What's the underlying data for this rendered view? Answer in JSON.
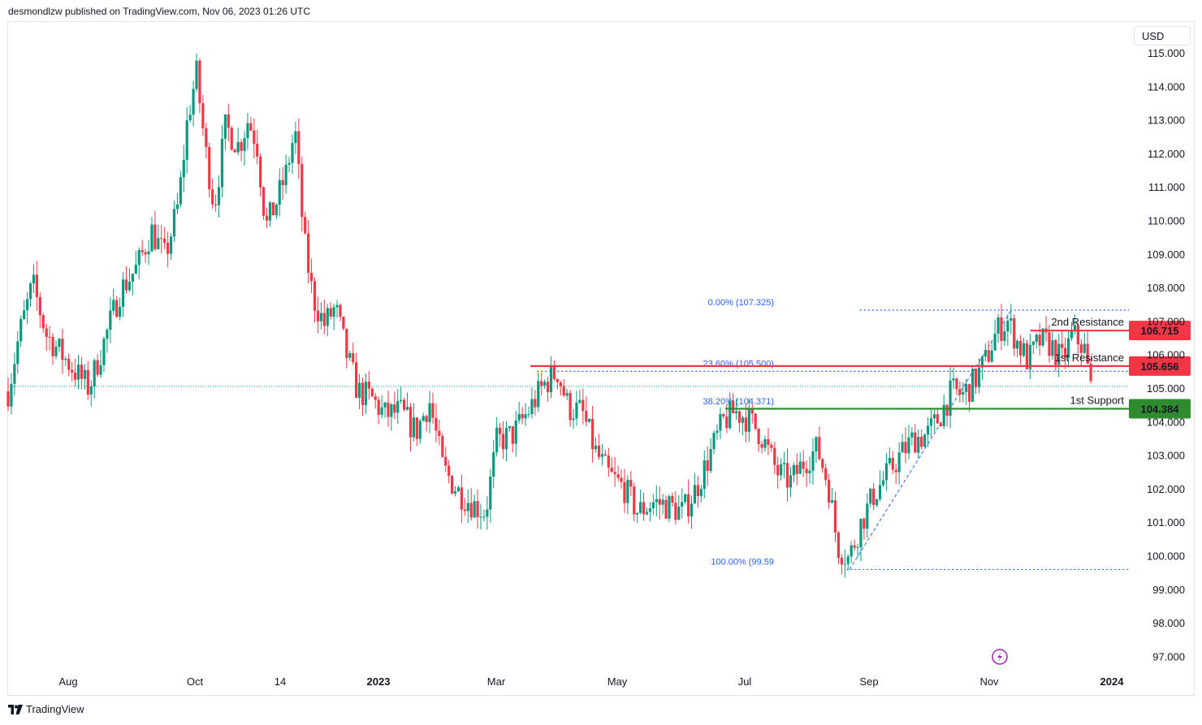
{
  "header": {
    "text": "desmondlzw published on TradingView.com, Nov 06, 2023 01:26 UTC"
  },
  "price_axis": {
    "currency": "USD",
    "ticks": [
      "115.000",
      "114.000",
      "113.000",
      "112.000",
      "111.000",
      "110.000",
      "109.000",
      "108.000",
      "107.000",
      "106.000",
      "105.000",
      "104.000",
      "103.000",
      "102.000",
      "101.000",
      "100.000",
      "99.000",
      "98.000",
      "97.000"
    ]
  },
  "footer": {
    "brand": "TradingView"
  },
  "colors": {
    "up": "#089981",
    "down": "#f23645",
    "resistance": "#f23645",
    "support": "#2e8b2e",
    "fib": "#2962ff"
  },
  "chart_data": {
    "type": "candlestick",
    "instrument_currency": "USD",
    "ylim": [
      96.6,
      115.4
    ],
    "x_ticks": [
      {
        "label": "Aug",
        "bold": false
      },
      {
        "label": "Oct",
        "bold": false
      },
      {
        "label": "14",
        "bold": false
      },
      {
        "label": "2023",
        "bold": true
      },
      {
        "label": "Mar",
        "bold": false
      },
      {
        "label": "May",
        "bold": false
      },
      {
        "label": "Jul",
        "bold": false
      },
      {
        "label": "Sep",
        "bold": false
      },
      {
        "label": "Nov",
        "bold": false
      },
      {
        "label": "2024",
        "bold": true
      }
    ],
    "price_path": [
      {
        "t": 0.0,
        "p": 104.9
      },
      {
        "t": 0.01,
        "p": 106.6
      },
      {
        "t": 0.022,
        "p": 108.1
      },
      {
        "t": 0.034,
        "p": 106.6
      },
      {
        "t": 0.048,
        "p": 106.0
      },
      {
        "t": 0.062,
        "p": 105.4
      },
      {
        "t": 0.072,
        "p": 105.0
      },
      {
        "t": 0.085,
        "p": 106.3
      },
      {
        "t": 0.1,
        "p": 107.9
      },
      {
        "t": 0.115,
        "p": 108.6
      },
      {
        "t": 0.128,
        "p": 109.7
      },
      {
        "t": 0.14,
        "p": 108.9
      },
      {
        "t": 0.152,
        "p": 110.5
      },
      {
        "t": 0.16,
        "p": 113.0
      },
      {
        "t": 0.168,
        "p": 114.4
      },
      {
        "t": 0.176,
        "p": 112.1
      },
      {
        "t": 0.184,
        "p": 110.4
      },
      {
        "t": 0.194,
        "p": 112.8
      },
      {
        "t": 0.206,
        "p": 112.2
      },
      {
        "t": 0.214,
        "p": 113.0
      },
      {
        "t": 0.222,
        "p": 112.3
      },
      {
        "t": 0.23,
        "p": 109.8
      },
      {
        "t": 0.24,
        "p": 110.6
      },
      {
        "t": 0.248,
        "p": 111.4
      },
      {
        "t": 0.256,
        "p": 112.7
      },
      {
        "t": 0.264,
        "p": 109.4
      },
      {
        "t": 0.272,
        "p": 107.7
      },
      {
        "t": 0.282,
        "p": 106.9
      },
      {
        "t": 0.292,
        "p": 107.4
      },
      {
        "t": 0.302,
        "p": 106.0
      },
      {
        "t": 0.312,
        "p": 104.9
      },
      {
        "t": 0.324,
        "p": 104.7
      },
      {
        "t": 0.336,
        "p": 104.2
      },
      {
        "t": 0.35,
        "p": 104.3
      },
      {
        "t": 0.364,
        "p": 103.7
      },
      {
        "t": 0.376,
        "p": 104.6
      },
      {
        "t": 0.388,
        "p": 102.6
      },
      {
        "t": 0.402,
        "p": 101.9
      },
      {
        "t": 0.416,
        "p": 101.5
      },
      {
        "t": 0.426,
        "p": 101.3
      },
      {
        "t": 0.436,
        "p": 103.4
      },
      {
        "t": 0.45,
        "p": 103.6
      },
      {
        "t": 0.464,
        "p": 104.3
      },
      {
        "t": 0.478,
        "p": 105.1
      },
      {
        "t": 0.49,
        "p": 105.5
      },
      {
        "t": 0.5,
        "p": 104.4
      },
      {
        "t": 0.512,
        "p": 104.3
      },
      {
        "t": 0.524,
        "p": 103.1
      },
      {
        "t": 0.536,
        "p": 102.4
      },
      {
        "t": 0.55,
        "p": 102.0
      },
      {
        "t": 0.562,
        "p": 101.3
      },
      {
        "t": 0.576,
        "p": 101.6
      },
      {
        "t": 0.588,
        "p": 101.5
      },
      {
        "t": 0.602,
        "p": 101.3
      },
      {
        "t": 0.614,
        "p": 102.0
      },
      {
        "t": 0.626,
        "p": 103.0
      },
      {
        "t": 0.638,
        "p": 104.0
      },
      {
        "t": 0.648,
        "p": 104.3
      },
      {
        "t": 0.66,
        "p": 104.1
      },
      {
        "t": 0.672,
        "p": 103.6
      },
      {
        "t": 0.686,
        "p": 102.5
      },
      {
        "t": 0.698,
        "p": 102.2
      },
      {
        "t": 0.71,
        "p": 102.8
      },
      {
        "t": 0.722,
        "p": 103.2
      },
      {
        "t": 0.732,
        "p": 102.1
      },
      {
        "t": 0.74,
        "p": 100.3
      },
      {
        "t": 0.75,
        "p": 99.9
      },
      {
        "t": 0.76,
        "p": 100.9
      },
      {
        "t": 0.772,
        "p": 101.8
      },
      {
        "t": 0.784,
        "p": 102.4
      },
      {
        "t": 0.796,
        "p": 103.0
      },
      {
        "t": 0.808,
        "p": 103.5
      },
      {
        "t": 0.82,
        "p": 103.6
      },
      {
        "t": 0.83,
        "p": 104.1
      },
      {
        "t": 0.842,
        "p": 104.9
      },
      {
        "t": 0.852,
        "p": 104.8
      },
      {
        "t": 0.862,
        "p": 105.2
      },
      {
        "t": 0.872,
        "p": 105.8
      },
      {
        "t": 0.882,
        "p": 106.7
      },
      {
        "t": 0.892,
        "p": 107.0
      },
      {
        "t": 0.9,
        "p": 106.4
      },
      {
        "t": 0.91,
        "p": 105.8
      },
      {
        "t": 0.92,
        "p": 106.4
      },
      {
        "t": 0.93,
        "p": 106.3
      },
      {
        "t": 0.94,
        "p": 105.8
      },
      {
        "t": 0.95,
        "p": 106.6
      },
      {
        "t": 0.96,
        "p": 106.2
      },
      {
        "t": 0.966,
        "p": 105.0
      }
    ],
    "last_close": 105.05,
    "levels": [
      {
        "name": "2nd Resistance",
        "value": 106.715,
        "label": "106.715",
        "kind": "resistance"
      },
      {
        "name": "1st Resistance",
        "value": 105.656,
        "label": "105.656",
        "kind": "resistance"
      },
      {
        "name": "1st Support",
        "value": 104.384,
        "label": "104.384",
        "kind": "support"
      }
    ],
    "fibonacci": {
      "swing_high": 107.325,
      "swing_low": 99.59,
      "levels": [
        {
          "label": "0.00% (107.325)",
          "value": 107.325
        },
        {
          "label": "23.60% (105.500)",
          "value": 105.5
        },
        {
          "label": "38.20% (104.371)",
          "value": 104.371
        },
        {
          "label": "100.00% (99.59",
          "value": 99.59
        }
      ]
    }
  }
}
